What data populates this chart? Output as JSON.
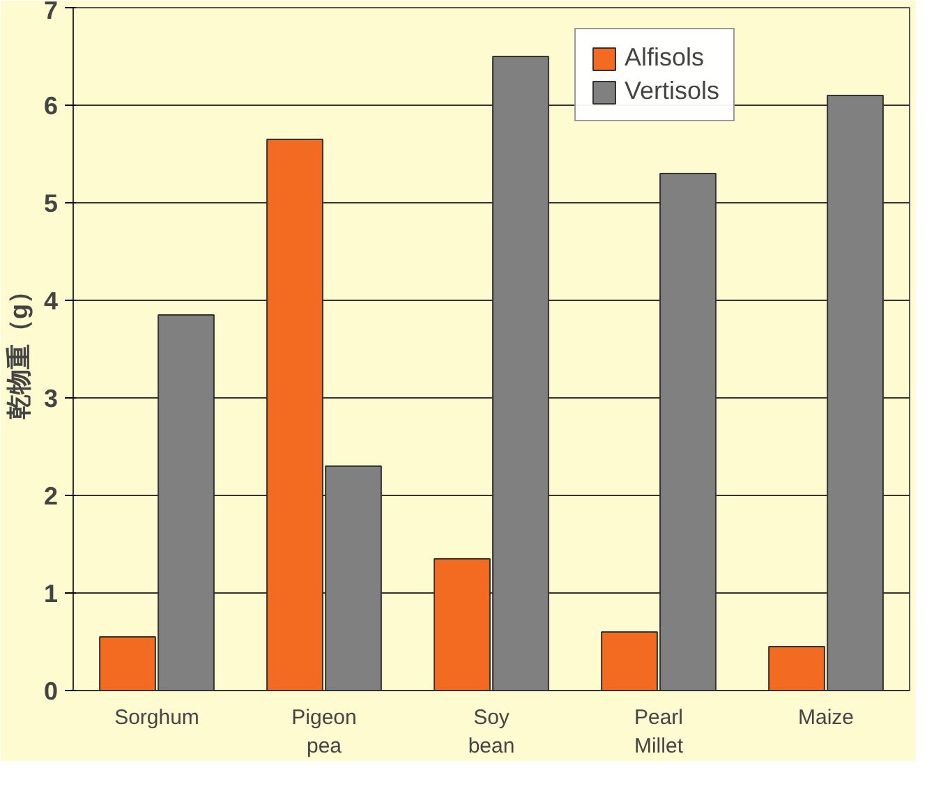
{
  "chart_data": {
    "type": "bar",
    "ylabel": "乾物重（g）",
    "categories": [
      "Sorghum",
      "Pigeon\npea",
      "Soy\nbean",
      "Pearl\nMillet",
      "Maize"
    ],
    "series": [
      {
        "name": "Alfisols",
        "color": "#f26b21",
        "values": [
          0.55,
          5.65,
          1.35,
          0.6,
          0.45
        ]
      },
      {
        "name": "Vertisols",
        "color": "#808080",
        "values": [
          3.85,
          2.3,
          6.5,
          5.3,
          6.1
        ]
      }
    ],
    "ylim": [
      0,
      7
    ],
    "yticks": [
      0,
      1,
      2,
      3,
      4,
      5,
      6,
      7
    ],
    "grid": "y",
    "legend": "top right"
  }
}
